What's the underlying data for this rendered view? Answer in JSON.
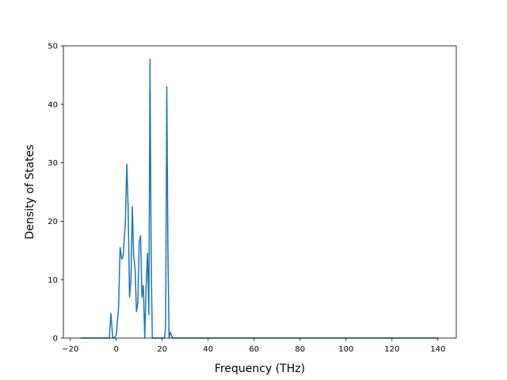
{
  "chart_data": {
    "type": "line",
    "title": "",
    "xlabel": "Frequency (THz)",
    "ylabel": "Density of States",
    "xlim": [
      -23,
      148
    ],
    "ylim": [
      0,
      50
    ],
    "x_ticks": [
      -20,
      0,
      20,
      40,
      60,
      80,
      100,
      120,
      140
    ],
    "y_ticks": [
      0,
      10,
      20,
      30,
      40,
      50
    ],
    "x_tick_labels": [
      "−20",
      "0",
      "20",
      "40",
      "60",
      "80",
      "100",
      "120",
      "140"
    ],
    "y_tick_labels": [
      "0",
      "10",
      "20",
      "30",
      "40",
      "50"
    ],
    "grid": false,
    "legend": "none",
    "series": [
      {
        "color": "#1f77b4",
        "x": [
          -15.5,
          -3.0,
          -2.3,
          -1.5,
          -1.0,
          0.0,
          1.0,
          1.7,
          2.4,
          3.0,
          3.5,
          4.0,
          4.6,
          5.2,
          5.8,
          6.4,
          7.0,
          7.6,
          8.2,
          8.8,
          9.4,
          10.0,
          10.6,
          11.2,
          11.8,
          12.4,
          13.0,
          13.6,
          14.2,
          14.7,
          15.2,
          15.7,
          16.1,
          16.6,
          17.0,
          17.5,
          18.0,
          21.0,
          21.5,
          22.0,
          22.5,
          23.0,
          23.5,
          24.0,
          24.5,
          140.0
        ],
        "y": [
          0,
          0,
          4.2,
          0,
          0,
          0.5,
          5,
          15.5,
          13.5,
          14,
          17,
          20,
          29.8,
          22,
          7,
          10,
          22.5,
          14,
          12,
          4.5,
          6,
          16.5,
          17.5,
          7,
          9,
          0,
          9,
          14.5,
          4,
          47.7,
          14,
          0,
          0,
          0,
          0,
          0,
          0,
          0,
          2,
          43,
          15,
          0,
          1,
          0.5,
          0,
          0
        ]
      }
    ]
  }
}
